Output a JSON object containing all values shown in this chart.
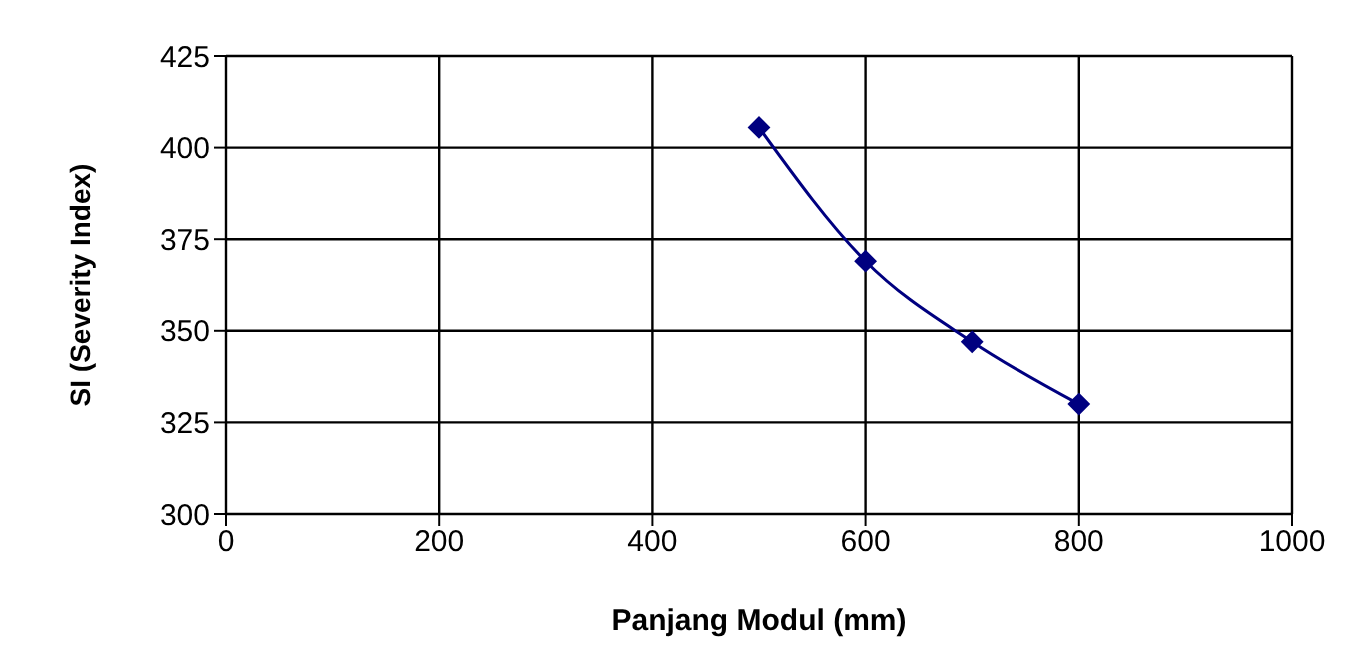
{
  "chart_data": {
    "type": "line",
    "xlabel": "Panjang Modul (mm)",
    "ylabel": "SI (Severity Index)",
    "x": [
      500,
      600,
      700,
      800
    ],
    "series": [
      {
        "color": "#000080",
        "values": [
          405.5,
          369,
          347,
          330
        ]
      }
    ],
    "xlim": [
      0,
      1000
    ],
    "xticks": [
      0,
      200,
      400,
      600,
      800,
      1000
    ],
    "ylim": [
      300,
      425
    ],
    "yticks": [
      300,
      325,
      350,
      375,
      400,
      425
    ],
    "grid": true,
    "marker": "diamond",
    "legend": false
  }
}
